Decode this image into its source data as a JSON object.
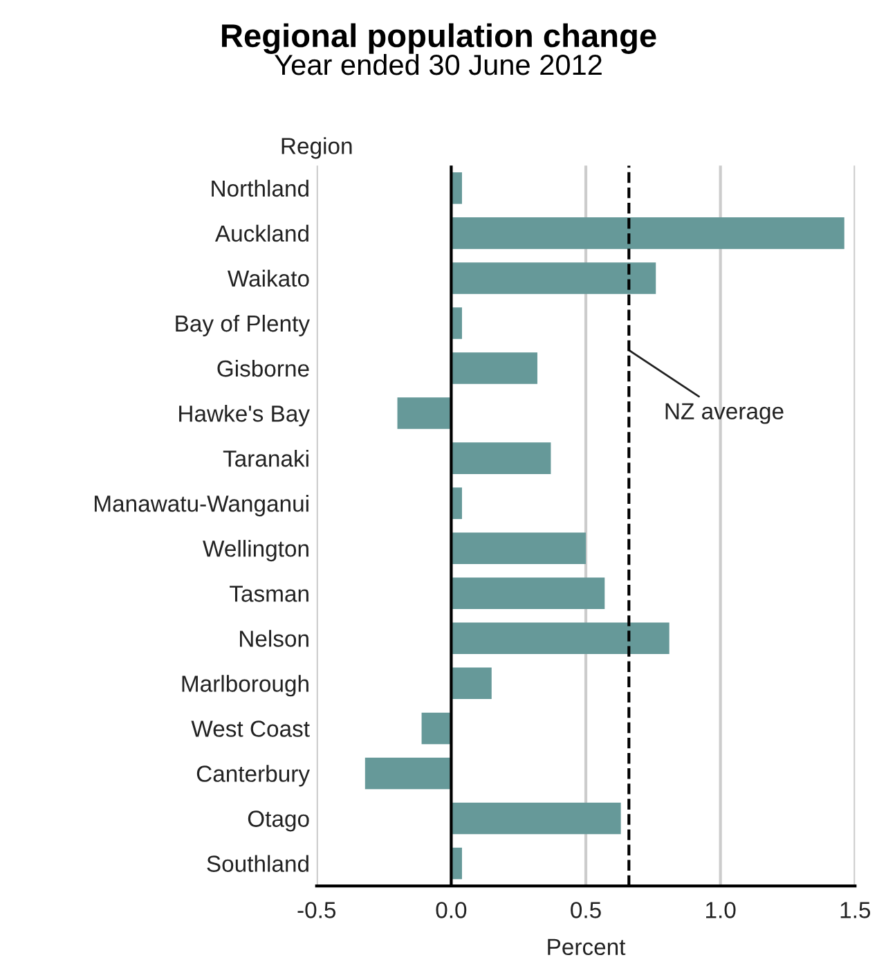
{
  "chart_data": {
    "type": "bar",
    "orientation": "horizontal",
    "title": "Regional population change",
    "subtitle": "Year ended 30 June 2012",
    "xlabel": "Percent",
    "ylabel": "Region",
    "categories": [
      "Northland",
      "Auckland",
      "Waikato",
      "Bay of Plenty",
      "Gisborne",
      "Hawke's Bay",
      "Taranaki",
      "Manawatu-Wanganui",
      "Wellington",
      "Tasman",
      "Nelson",
      "Marlborough",
      "West Coast",
      "Canterbury",
      "Otago",
      "Southland"
    ],
    "values": [
      0.04,
      1.46,
      0.76,
      0.04,
      0.32,
      -0.2,
      0.37,
      0.04,
      0.5,
      0.57,
      0.81,
      0.15,
      -0.11,
      -0.32,
      0.63,
      0.04
    ],
    "color": "#669999",
    "xlim": [
      -0.5,
      1.5
    ],
    "xticks": [
      {
        "value": -0.5,
        "label": "-0.5"
      },
      {
        "value": 0,
        "label": "0.0"
      },
      {
        "value": 0.5,
        "label": "0.5"
      },
      {
        "value": 1,
        "label": "1.0"
      },
      {
        "value": 1.5,
        "label": "1.5"
      }
    ],
    "grid": "x",
    "ref_lines": [
      {
        "axis": "x",
        "value": 0.66,
        "label": "NZ average",
        "color": "#000000",
        "line_style": "dashed"
      }
    ]
  }
}
